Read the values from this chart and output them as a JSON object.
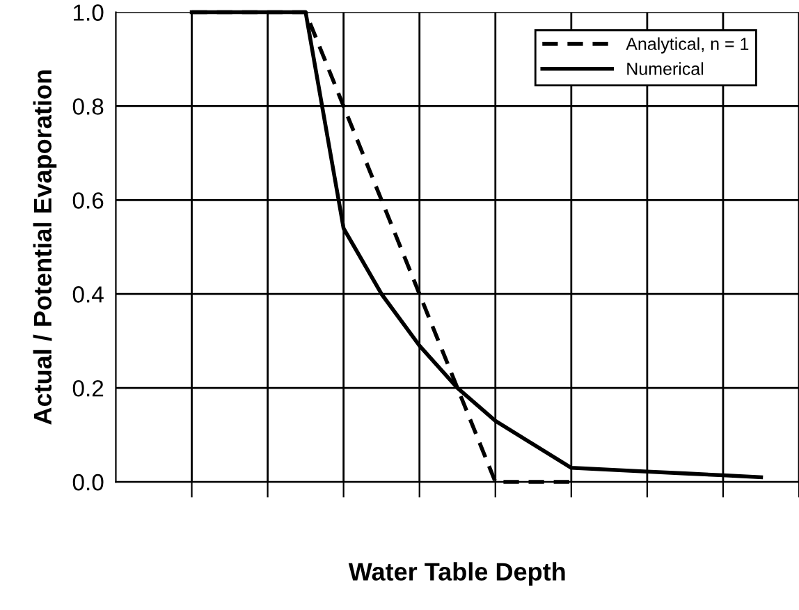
{
  "chart_data": {
    "type": "line",
    "xlabel": "Water Table Depth",
    "ylabel": "Actual / Potential Evaporation",
    "categories": [
      null,
      null,
      null,
      null,
      null,
      null,
      null,
      null,
      null,
      null,
      null,
      null,
      null,
      null,
      null,
      null,
      null,
      null,
      null
    ],
    "ylim": [
      0,
      1
    ],
    "yticks": [
      {
        "value": 0,
        "label": "0.0"
      },
      {
        "value": 0.2,
        "label": "0.2"
      },
      {
        "value": 0.4,
        "label": "0.4"
      },
      {
        "value": 0.6,
        "label": "0.6"
      },
      {
        "value": 0.8,
        "label": "0.8"
      },
      {
        "value": 1,
        "label": "1.0"
      }
    ],
    "grid": true,
    "legend": "top right",
    "marker": "none",
    "series": [
      {
        "name": "Analytical, n = 1",
        "color": "#000000",
        "line_style": "dashed",
        "values": [
          null,
          null,
          1,
          1,
          1,
          1,
          0.8,
          0.6,
          0.4,
          0.2,
          0,
          0,
          0,
          null,
          null,
          null,
          null,
          null,
          null
        ]
      },
      {
        "name": "Numerical",
        "color": "#000000",
        "line_style": "solid",
        "values": [
          null,
          null,
          1,
          1,
          1,
          1,
          0.54,
          0.4,
          0.29,
          0.2,
          0.13,
          0.08,
          0.03,
          0.026,
          0.022,
          0.018,
          0.014,
          0.01,
          null
        ]
      }
    ]
  }
}
